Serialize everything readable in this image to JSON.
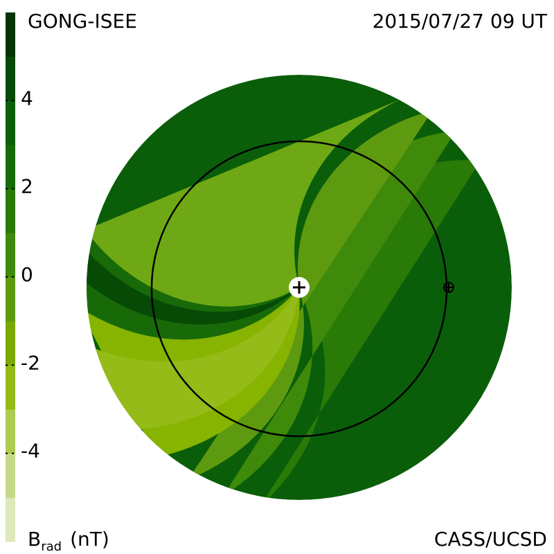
{
  "header": {
    "left": "GONG-ISEE",
    "right": "2015/07/27 09 UT"
  },
  "footer": {
    "symbol": "B",
    "subscript": "rad",
    "unit": "(nT)",
    "right": "CASS/UCSD"
  },
  "colorbar": {
    "lim": [
      -6,
      6
    ],
    "ticks": [
      4,
      2,
      0,
      -2,
      -4
    ],
    "colors": [
      "#dde8bb",
      "#c5da88",
      "#aecb52",
      "#94bb18",
      "#7aa800",
      "#5e9a10",
      "#3f8a0a",
      "#2a7a08",
      "#186a08",
      "#0a5e0a",
      "#064a06",
      "#033403"
    ]
  }
}
